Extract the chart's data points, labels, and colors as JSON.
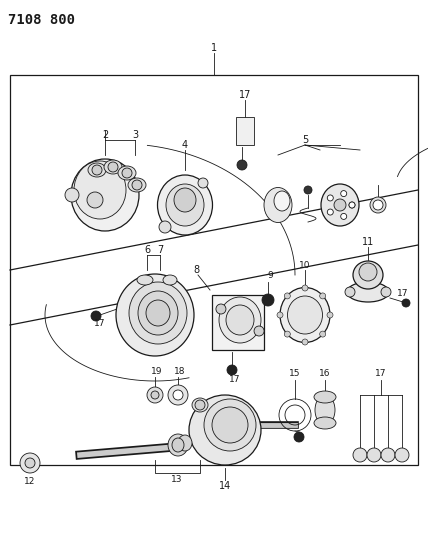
{
  "title": "7108 800",
  "bg_color": "#ffffff",
  "fig_width": 4.28,
  "fig_height": 5.33,
  "dpi": 100,
  "line_color": "#1a1a1a",
  "light_gray": "#d0d0d0",
  "mid_gray": "#a0a0a0",
  "dark_gray": "#404040"
}
